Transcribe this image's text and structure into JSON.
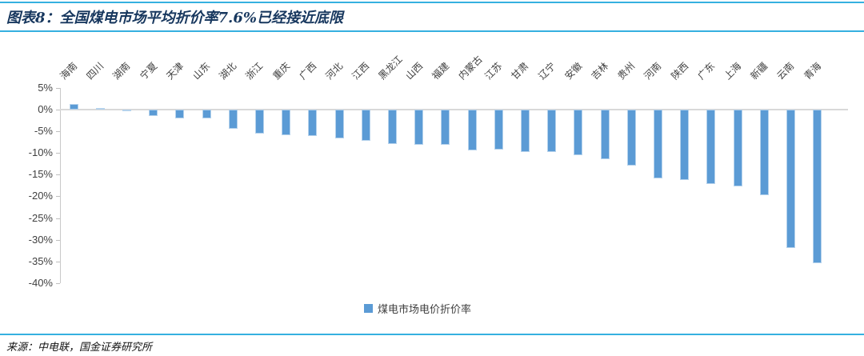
{
  "header": {
    "title": "图表8：全国煤电市场平均折价率7.6%已经接近底限"
  },
  "footer": {
    "source": "来源：中电联，国金证券研究所"
  },
  "colors": {
    "accent_rule": "#35b0e0",
    "title_text": "#17375e",
    "bar_fill": "#5b9bd5",
    "axis_text": "#404040"
  },
  "chart_data": {
    "type": "bar",
    "title": "全国煤电市场平均折价率7.6%已经接近底限",
    "categories": [
      "海南",
      "四川",
      "湖南",
      "宁夏",
      "天津",
      "山东",
      "湖北",
      "浙江",
      "重庆",
      "广西",
      "河北",
      "江西",
      "黑龙江",
      "山西",
      "福建",
      "内蒙古",
      "江苏",
      "甘肃",
      "辽宁",
      "安徽",
      "吉林",
      "贵州",
      "河南",
      "陕西",
      "广东",
      "上海",
      "新疆",
      "云南",
      "青海"
    ],
    "values": [
      1.3,
      0.3,
      0.0,
      -1.5,
      -2.0,
      -2.0,
      -4.4,
      -5.5,
      -5.9,
      -6.1,
      -6.7,
      -7.2,
      -7.9,
      -8.1,
      -8.2,
      -9.5,
      -9.3,
      -9.7,
      -9.8,
      -10.6,
      -11.4,
      -13.0,
      -15.9,
      -16.3,
      -17.1,
      -17.7,
      -19.8,
      -31.9,
      -35.4
    ],
    "unit": "%",
    "xlabel": "",
    "ylabel": "",
    "ylim": [
      -40,
      5
    ],
    "yticks": [
      "5%",
      "0%",
      "-5%",
      "-10%",
      "-15%",
      "-20%",
      "-25%",
      "-30%",
      "-35%",
      "-40%"
    ],
    "grid": false,
    "legend": {
      "position": "bottom",
      "label": "煤电市场电价折价率",
      "marker_color": "#5b9bd5"
    },
    "bar_color": "#5b9bd5"
  }
}
